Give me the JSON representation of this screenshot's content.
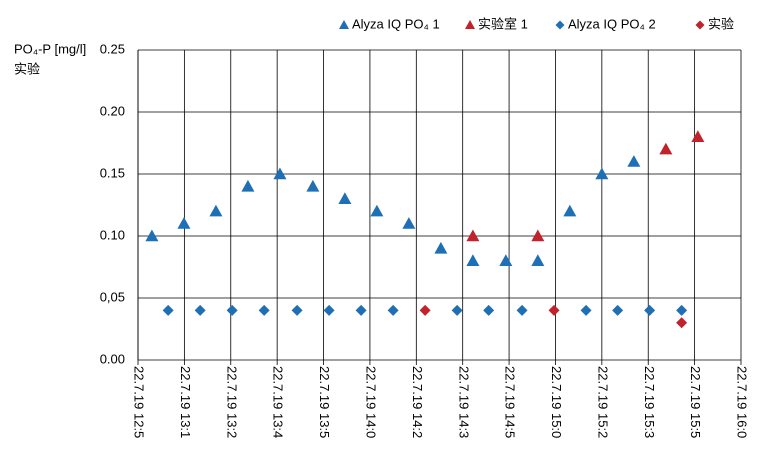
{
  "chart_data": {
    "type": "scatter",
    "ylabel": "PO₄-P [mg/l]",
    "ylabel_sub": "实验",
    "xlim": [
      0,
      13
    ],
    "xticks": [
      {
        "value": 0,
        "label": "22.7.19 12:5"
      },
      {
        "value": 1,
        "label": "22.7.19 13:1"
      },
      {
        "value": 2,
        "label": "22.7.19 13:2"
      },
      {
        "value": 3,
        "label": "22.7.19 13:4"
      },
      {
        "value": 4,
        "label": "22.7.19 13:5"
      },
      {
        "value": 5,
        "label": "22.7.19 14:0"
      },
      {
        "value": 6,
        "label": "22.7.19 14:2"
      },
      {
        "value": 7,
        "label": "22.7.19 14:3"
      },
      {
        "value": 8,
        "label": "22.7.19 14:5"
      },
      {
        "value": 9,
        "label": "22.7.19 15:0"
      },
      {
        "value": 10,
        "label": "22.7.19 15:2"
      },
      {
        "value": 11,
        "label": "22.7.19 15:3"
      },
      {
        "value": 12,
        "label": "22.7.19 15:5"
      },
      {
        "value": 13,
        "label": "22.7.19 16:0"
      }
    ],
    "ylim": [
      0,
      0.25
    ],
    "yticks": [
      {
        "value": 0,
        "label": "0.00"
      },
      {
        "value": 0.05,
        "label": "0,05"
      },
      {
        "value": 0.1,
        "label": "0.10"
      },
      {
        "value": 0.15,
        "label": "0.15"
      },
      {
        "value": 0.2,
        "label": "0.20"
      },
      {
        "value": 0.25,
        "label": "0.25"
      }
    ],
    "grid": true,
    "series": [
      {
        "name": "Alyza IQ PO₄ 1",
        "color": "#1f6fb5",
        "marker": "triangle",
        "x": [
          0.3,
          0.99,
          1.68,
          2.37,
          3.06,
          3.77,
          4.46,
          5.15,
          5.84,
          6.53,
          7.22,
          7.93,
          8.62,
          9.31,
          10.0,
          10.69
        ],
        "values": [
          0.1,
          0.11,
          0.12,
          0.14,
          0.15,
          0.14,
          0.13,
          0.12,
          0.11,
          0.09,
          0.08,
          0.08,
          0.08,
          0.12,
          0.15,
          0.16
        ]
      },
      {
        "name": "实验室 1",
        "color": "#c0232c",
        "marker": "triangle",
        "x": [
          7.22,
          8.62,
          11.38,
          12.07
        ],
        "values": [
          0.1,
          0.1,
          0.17,
          0.18
        ]
      },
      {
        "name": "Alyza IQ PO₄ 2",
        "color": "#1f6fb5",
        "marker": "diamond",
        "x": [
          0.65,
          1.34,
          2.03,
          2.72,
          3.43,
          4.12,
          4.81,
          5.5,
          6.88,
          7.56,
          8.28,
          9.66,
          10.34,
          11.03,
          11.72
        ],
        "values": [
          0.04,
          0.04,
          0.04,
          0.04,
          0.04,
          0.04,
          0.04,
          0.04,
          0.04,
          0.04,
          0.04,
          0.04,
          0.04,
          0.04,
          0.04
        ]
      },
      {
        "name": "实验",
        "color": "#c0232c",
        "marker": "diamond",
        "x": [
          6.19,
          8.97,
          11.72
        ],
        "values": [
          0.04,
          0.04,
          0.03
        ]
      }
    ]
  }
}
